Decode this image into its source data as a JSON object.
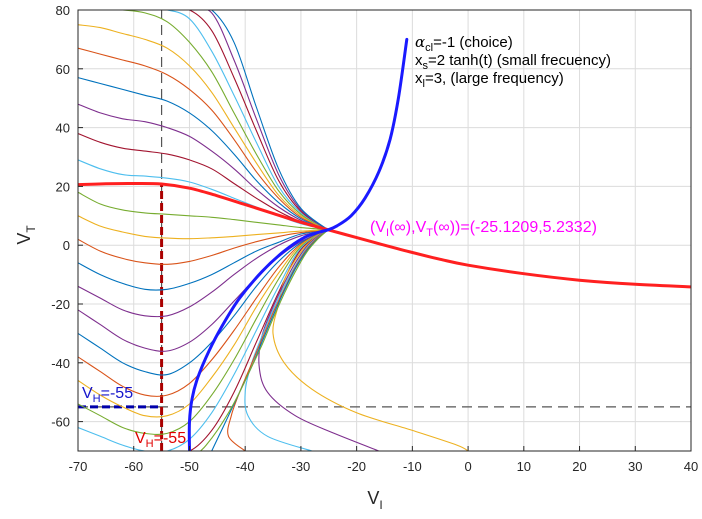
{
  "chart_data": {
    "type": "line",
    "xlabel": "V",
    "xlabel_sub": "I",
    "ylabel": "V",
    "ylabel_sub": "T",
    "xlim": [
      -70,
      40
    ],
    "ylim": [
      -70,
      80
    ],
    "xticks": [
      -70,
      -60,
      -50,
      -40,
      -30,
      -20,
      -10,
      0,
      10,
      20,
      30,
      40
    ],
    "yticks": [
      -60,
      -40,
      -20,
      0,
      20,
      40,
      60,
      80
    ],
    "grid": true,
    "annotations": {
      "alpha_line": {
        "symbol": "α",
        "sub": "cl",
        "text": "=-1 (choice)"
      },
      "xs_line": {
        "symbol": "x",
        "sub": "s",
        "text": "=2 tanh(t) (small frecuency)"
      },
      "xl_line": {
        "symbol": "x",
        "sub": "l",
        "text": "=3, (large frequency)"
      },
      "limit_point": {
        "prefix": "(V",
        "sub1": "I",
        "mid1": "(∞),V",
        "sub2": "T",
        "suffix": "(∞))=(-25.1209,5.2332)",
        "color": "#ff00ff"
      },
      "v_label_blue": {
        "prefix": "V",
        "sub": "H",
        "text": "=-55",
        "color": "#1515cc"
      },
      "v_label_red": {
        "prefix": "V",
        "sub": "H",
        "text": "=-55",
        "color": "#e00000"
      }
    },
    "fixed_point": {
      "x": -25.1209,
      "y": 5.2332
    },
    "reference_lines": [
      {
        "orientation": "vertical",
        "x": -55,
        "color": "#555555",
        "style": "dashed"
      },
      {
        "orientation": "horizontal",
        "y": -55,
        "color": "#555555",
        "style": "dashed"
      },
      {
        "orientation": "vertical",
        "x": -55,
        "y_to": 21,
        "color": "#aa0000",
        "style": "dashed-bold"
      },
      {
        "orientation": "horizontal",
        "y": -55,
        "x_to": -55,
        "color": "#0000aa",
        "style": "dashed-bold"
      }
    ],
    "series": [
      {
        "color": "#ff2020",
        "width": 3,
        "x": [
          -70,
          -65,
          -60,
          -55,
          -50,
          -45,
          -40,
          -35,
          -30,
          -25.1209,
          -20,
          -15,
          -10,
          -5,
          0,
          10,
          20,
          30,
          40
        ],
        "y": [
          20.6,
          20.9,
          21.0,
          20.8,
          19.4,
          16.8,
          13.8,
          10.8,
          7.8,
          5.2332,
          2.6,
          0.0,
          -2.5,
          -4.8,
          -6.8,
          -9.7,
          -11.9,
          -13.3,
          -14.2
        ]
      },
      {
        "color": "#1a1aff",
        "width": 3,
        "x": [
          -50,
          -50,
          -49.5,
          -48.5,
          -46.5,
          -44,
          -41,
          -37,
          -33,
          -29.5,
          -27,
          -25.1209,
          -23.5,
          -21,
          -18.5,
          -16,
          -14,
          -12.5,
          -11
        ],
        "y": [
          -70,
          -60,
          -52,
          -45,
          -36,
          -27,
          -18,
          -9,
          -2,
          2.5,
          4.3,
          5.2332,
          6.6,
          10,
          16,
          25,
          36,
          50,
          70
        ]
      },
      {
        "color": "#7e2f8e",
        "x": [
          -70,
          -66,
          -62,
          -58,
          -54,
          -50,
          -46,
          -42,
          -38,
          -34,
          -30,
          -25.12
        ],
        "y": [
          -22,
          -27,
          -32,
          -35,
          -36,
          -33,
          -27,
          -19,
          -11,
          -4,
          1.2,
          5.23
        ]
      },
      {
        "color": "#0072bd",
        "x": [
          -70,
          -66,
          -62,
          -58,
          -54,
          -50,
          -46,
          -42,
          -38,
          -34,
          -30,
          -25.12
        ],
        "y": [
          -30,
          -35,
          -40,
          -43,
          -44,
          -40,
          -33,
          -24,
          -14,
          -5.5,
          0.8,
          5.23
        ]
      },
      {
        "color": "#d95319",
        "x": [
          -70,
          -66,
          -62,
          -58,
          -54,
          -50,
          -46,
          -42,
          -38,
          -34,
          -30,
          -25.12
        ],
        "y": [
          -38,
          -43,
          -48,
          -51,
          -51,
          -47,
          -39,
          -29,
          -18,
          -7.5,
          0.4,
          5.23
        ]
      },
      {
        "color": "#edb120",
        "x": [
          -70,
          -66,
          -62,
          -58,
          -54,
          -50,
          -46,
          -42,
          -38,
          -34,
          -30,
          -25.12
        ],
        "y": [
          -46,
          -51,
          -55,
          -58,
          -58,
          -54,
          -45,
          -34,
          -21,
          -9.5,
          0,
          5.23
        ]
      },
      {
        "color": "#77ac30",
        "x": [
          -70,
          -66,
          -62,
          -58,
          -54,
          -50,
          -46,
          -42,
          -38,
          -34,
          -30,
          -25.12
        ],
        "y": [
          -54,
          -58,
          -62,
          -64,
          -64,
          -60,
          -51,
          -39,
          -25,
          -11.5,
          -0.5,
          5.23
        ]
      },
      {
        "color": "#4dbeee",
        "x": [
          -70,
          -66,
          -62,
          -58,
          -54,
          -50,
          -46,
          -42,
          -38,
          -34,
          -30,
          -25.12
        ],
        "y": [
          -62,
          -65,
          -68,
          -70,
          -70,
          -66,
          -57,
          -44,
          -29,
          -14,
          -1,
          5.23
        ]
      },
      {
        "color": "#a2142f",
        "x": [
          -63,
          -58,
          -54,
          -50,
          -46,
          -42,
          -38,
          -34,
          -30,
          -25.12
        ],
        "y": [
          -70,
          -70,
          -70,
          -70,
          -63,
          -50,
          -33,
          -16,
          -1.5,
          5.23
        ]
      },
      {
        "color": "#7e2f8e",
        "x": [
          -70,
          -66,
          -62,
          -58,
          -54,
          -50,
          -46,
          -42,
          -38,
          -34,
          -30,
          -25.12
        ],
        "y": [
          -14,
          -18,
          -22,
          -24,
          -24,
          -21,
          -16,
          -10,
          -4.5,
          0,
          3.2,
          5.23
        ]
      },
      {
        "color": "#0072bd",
        "x": [
          -70,
          -66,
          -62,
          -58,
          -54,
          -50,
          -46,
          -42,
          -38,
          -34,
          -30,
          -25.12
        ],
        "y": [
          -6,
          -10,
          -13,
          -15,
          -15,
          -13,
          -10,
          -6,
          -2,
          1,
          3.8,
          5.23
        ]
      },
      {
        "color": "#d95319",
        "x": [
          -70,
          -66,
          -62,
          -58,
          -54,
          -50,
          -46,
          -42,
          -38,
          -34,
          -30,
          -25.12
        ],
        "y": [
          2,
          -2,
          -4.5,
          -6,
          -6.5,
          -5.5,
          -3.5,
          -1,
          1.2,
          3,
          4.3,
          5.23
        ]
      },
      {
        "color": "#edb120",
        "x": [
          -70,
          -66,
          -62,
          -58,
          -54,
          -50,
          -46,
          -42,
          -38,
          -34,
          -30,
          -25.12
        ],
        "y": [
          10,
          6.5,
          4.5,
          3,
          2.4,
          2.2,
          2.5,
          3,
          3.6,
          4.2,
          4.8,
          5.23
        ]
      },
      {
        "color": "#77ac30",
        "x": [
          -70,
          -66,
          -62,
          -58,
          -54,
          -50,
          -46,
          -42,
          -38,
          -34,
          -30,
          -25.12
        ],
        "y": [
          18,
          14,
          12,
          11,
          10.5,
          10,
          9.5,
          8.7,
          7.8,
          6.9,
          6,
          5.23
        ]
      },
      {
        "color": "#4dbeee",
        "x": [
          -70,
          -66,
          -62,
          -58,
          -54,
          -50,
          -46,
          -42,
          -38,
          -34,
          -30,
          -25.12
        ],
        "y": [
          29,
          26,
          24,
          23.5,
          22.8,
          21.5,
          19,
          16,
          13,
          10,
          7.3,
          5.23
        ]
      },
      {
        "color": "#a2142f",
        "x": [
          -70,
          -66,
          -62,
          -58,
          -54,
          -50,
          -46,
          -42,
          -38,
          -34,
          -30,
          -25.12
        ],
        "y": [
          38,
          35,
          33,
          32,
          31,
          29,
          26,
          21,
          16,
          11.5,
          8,
          5.23
        ]
      },
      {
        "color": "#7e2f8e",
        "x": [
          -70,
          -66,
          -62,
          -58,
          -54,
          -50,
          -46,
          -42,
          -38,
          -34,
          -30,
          -25.12
        ],
        "y": [
          48,
          45,
          43,
          42,
          40,
          37,
          32,
          26,
          19,
          13,
          8.5,
          5.23
        ]
      },
      {
        "color": "#0072bd",
        "x": [
          -70,
          -66,
          -62,
          -58,
          -54,
          -50,
          -46,
          -42,
          -38,
          -34,
          -30,
          -25.12
        ],
        "y": [
          57,
          55,
          53,
          51,
          49,
          45,
          39,
          31,
          22,
          14.5,
          9,
          5.23
        ]
      },
      {
        "color": "#d95319",
        "x": [
          -70,
          -66,
          -62,
          -58,
          -54,
          -50,
          -46,
          -42,
          -38,
          -34,
          -30,
          -25.12
        ],
        "y": [
          67,
          65,
          63,
          61,
          58,
          53,
          46,
          36,
          25,
          16,
          9.5,
          5.23
        ]
      },
      {
        "color": "#edb120",
        "x": [
          -70,
          -66,
          -62,
          -58,
          -54,
          -50,
          -46,
          -42,
          -38,
          -34,
          -30,
          -25.12
        ],
        "y": [
          75,
          74,
          72,
          70,
          67,
          61,
          52,
          40,
          28,
          17,
          10,
          5.23
        ]
      },
      {
        "color": "#77ac30",
        "x": [
          -66,
          -62,
          -58,
          -54,
          -50,
          -46,
          -42,
          -38,
          -34,
          -30,
          -25.12
        ],
        "y": [
          80,
          80,
          79,
          76,
          69,
          59,
          45,
          31,
          18.5,
          10.5,
          5.23
        ]
      },
      {
        "color": "#4dbeee",
        "x": [
          -62,
          -58,
          -54,
          -50,
          -46,
          -42,
          -38,
          -34,
          -30,
          -25.12
        ],
        "y": [
          80,
          80,
          80,
          77,
          66,
          51,
          35,
          20,
          11,
          5.23
        ]
      },
      {
        "color": "#a2142f",
        "x": [
          -57,
          -54,
          -50,
          -46,
          -42,
          -38,
          -34,
          -30,
          -25.12
        ],
        "y": [
          80,
          80,
          80,
          73,
          57,
          39,
          22,
          11.5,
          5.23
        ]
      },
      {
        "color": "#7e2f8e",
        "x": [
          -53,
          -50,
          -46,
          -42,
          -38,
          -34,
          -30,
          -25.12
        ],
        "y": [
          80,
          80,
          79,
          63,
          43,
          24,
          12,
          5.23
        ]
      },
      {
        "color": "#0072bd",
        "x": [
          -49,
          -46,
          -42,
          -38,
          -34,
          -30,
          -25.12
        ],
        "y": [
          80,
          80,
          69,
          47,
          26,
          12.5,
          5.23
        ]
      },
      {
        "color": "#edb120",
        "x": [
          -25.12,
          -27,
          -29,
          -31,
          -33,
          -34,
          -35,
          -33,
          -28,
          -20,
          -10,
          -2,
          0
        ],
        "y": [
          5.23,
          3.2,
          0,
          -5,
          -12,
          -20,
          -30,
          -40,
          -49,
          -57,
          -63,
          -68,
          -70
        ]
      },
      {
        "color": "#7e2f8e",
        "x": [
          -25.12,
          -27,
          -29,
          -31,
          -33,
          -35,
          -37,
          -37.5,
          -36,
          -31,
          -24,
          -16
        ],
        "y": [
          5.23,
          3,
          -0.5,
          -6,
          -13,
          -21,
          -31,
          -41,
          -50,
          -58,
          -64,
          -70
        ]
      },
      {
        "color": "#4dbeee",
        "x": [
          -25.12,
          -27,
          -29,
          -31,
          -33,
          -35,
          -37,
          -39,
          -40,
          -39.5,
          -36,
          -28
        ],
        "y": [
          5.23,
          2.7,
          -1,
          -7,
          -14,
          -22,
          -31,
          -41,
          -50,
          -58,
          -65,
          -70
        ]
      },
      {
        "color": "#d95319",
        "x": [
          -25.12,
          -27,
          -29,
          -31,
          -33,
          -35,
          -37,
          -39,
          -41,
          -42.5,
          -43,
          -40
        ],
        "y": [
          5.23,
          2.5,
          -1.5,
          -7.5,
          -15,
          -23,
          -32,
          -41,
          -50,
          -58,
          -65,
          -70
        ]
      },
      {
        "color": "#0072bd",
        "x": [
          -25.12,
          -27,
          -29,
          -31,
          -33,
          -35,
          -37,
          -39,
          -41,
          -43,
          -44.5,
          -46
        ],
        "y": [
          5.23,
          2.2,
          -2,
          -8,
          -15.5,
          -24,
          -33,
          -42,
          -50,
          -58,
          -64,
          -70
        ]
      },
      {
        "color": "#77ac30",
        "x": [
          -25.12,
          -27,
          -29,
          -31,
          -33,
          -35,
          -37,
          -39,
          -41,
          -43,
          -45,
          -47,
          -48
        ],
        "y": [
          5.23,
          2,
          -2.5,
          -9,
          -16.5,
          -25,
          -34,
          -42,
          -50,
          -57,
          -63,
          -68,
          -70
        ]
      }
    ]
  }
}
